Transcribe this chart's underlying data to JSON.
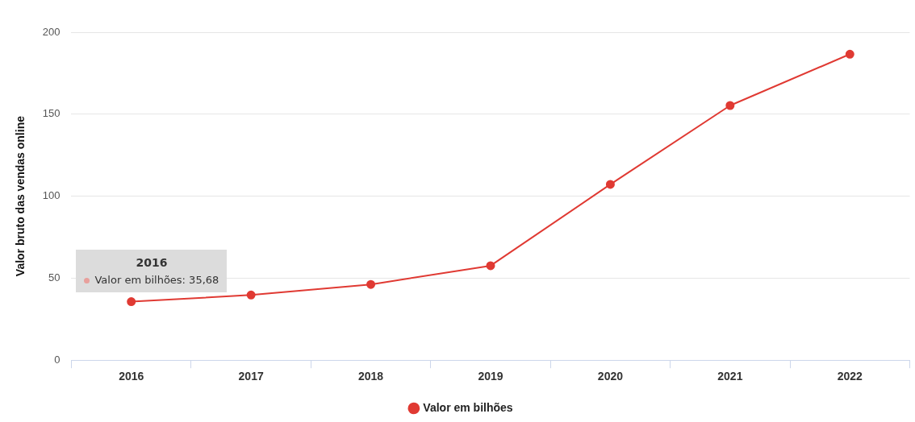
{
  "chart_data": {
    "type": "line",
    "ylabel": "Valor bruto das vendas online",
    "categories": [
      "2016",
      "2017",
      "2018",
      "2019",
      "2020",
      "2021",
      "2022"
    ],
    "series": [
      {
        "name": "Valor em bilhões",
        "color": "#e03a33",
        "values": [
          35.68,
          39.7,
          46.2,
          57.6,
          107.2,
          155.3,
          186.6
        ]
      }
    ],
    "ylim": [
      0,
      200
    ],
    "yticks": [
      0,
      50,
      100,
      150,
      200
    ],
    "grid": "y",
    "legend": "bottom",
    "marker": "circle",
    "annotations": [
      "2016",
      "Valor em bilhões: 35,68"
    ]
  }
}
